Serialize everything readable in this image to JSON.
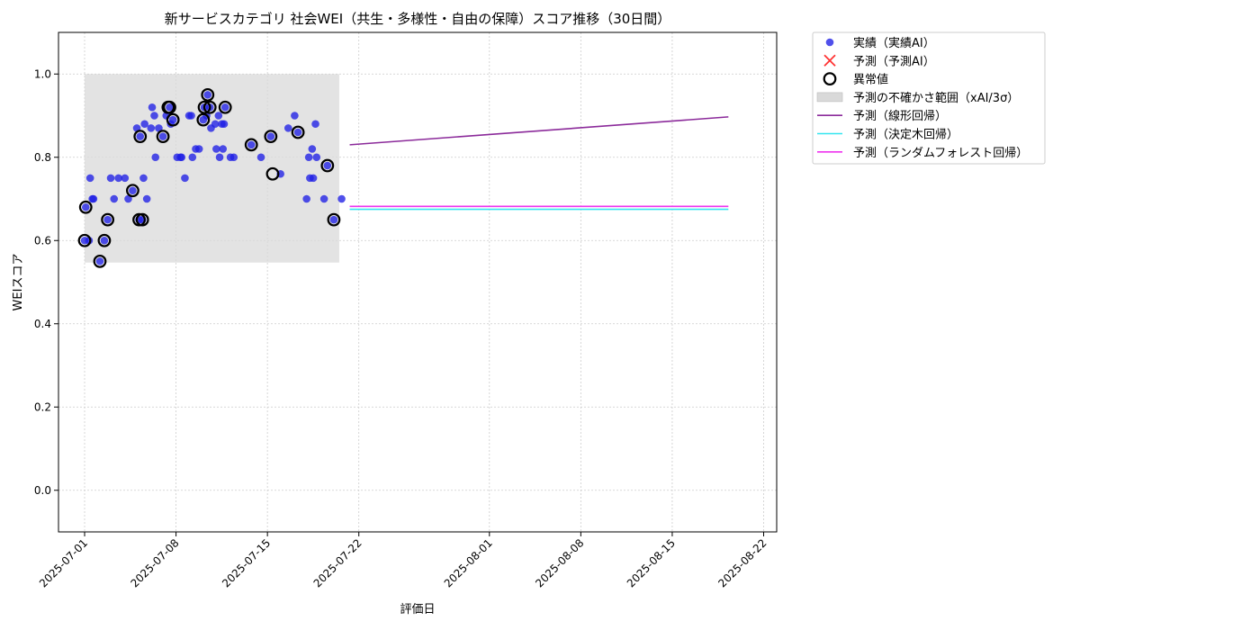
{
  "chart_data": {
    "type": "scatter",
    "title": "新サービスカテゴリ 社会WEI（共生・多様性・自由の保障）スコア推移（30日間）",
    "xlabel": "評価日",
    "ylabel": "WEIスコア",
    "ylim": [
      -0.1,
      1.1
    ],
    "xlim": [
      "2025-06-29",
      "2025-08-23"
    ],
    "x_ticks": [
      "2025-07-01",
      "2025-07-08",
      "2025-07-15",
      "2025-07-22",
      "2025-08-01",
      "2025-08-08",
      "2025-08-15",
      "2025-08-22"
    ],
    "y_ticks": [
      "0.0",
      "0.2",
      "0.4",
      "0.6",
      "0.8",
      "1.0"
    ],
    "grid": true,
    "legend_position": "outside-right-top",
    "colors": {
      "actual": "#1f1fe6",
      "predicted": "#ff3333",
      "anomaly": "#000000",
      "band": "#d9d9d9",
      "linear": "#8b2a9a",
      "tree": "#33e6f0",
      "forest": "#ee33ee"
    },
    "legend": [
      {
        "key": "actual",
        "label": "実績（実績AI）"
      },
      {
        "key": "predicted",
        "label": "予測（予測AI）"
      },
      {
        "key": "anomaly",
        "label": "異常値"
      },
      {
        "key": "band",
        "label": "予測の不確かさ範囲（xAI/3σ）"
      },
      {
        "key": "linear",
        "label": "予測（線形回帰）"
      },
      {
        "key": "tree",
        "label": "予測（決定木回帰）"
      },
      {
        "key": "forest",
        "label": "予測（ランダムフォレスト回帰）"
      }
    ],
    "uncertainty_band": {
      "x": [
        "2025-07-01",
        "2025-07-21"
      ],
      "y": [
        0.547,
        1.0
      ]
    },
    "series": [
      {
        "name": "実績（実績AI）",
        "points": [
          [
            "2025-07-01",
            0.6
          ],
          [
            "2025-07-01",
            0.7
          ],
          [
            "2025-07-01",
            0.6
          ],
          [
            "2025-07-01",
            0.68
          ],
          [
            "2025-07-01",
            0.7
          ],
          [
            "2025-07-01",
            0.75
          ],
          [
            "2025-07-02",
            0.55
          ],
          [
            "2025-07-02",
            0.65
          ],
          [
            "2025-07-02",
            0.6
          ],
          [
            "2025-07-03",
            0.7
          ],
          [
            "2025-07-03",
            0.75
          ],
          [
            "2025-07-03",
            0.75
          ],
          [
            "2025-07-04",
            0.7
          ],
          [
            "2025-07-04",
            0.75
          ],
          [
            "2025-07-04",
            0.72
          ],
          [
            "2025-07-05",
            0.65
          ],
          [
            "2025-07-05",
            0.65
          ],
          [
            "2025-07-05",
            0.7
          ],
          [
            "2025-07-05",
            0.75
          ],
          [
            "2025-07-05",
            0.85
          ],
          [
            "2025-07-05",
            0.87
          ],
          [
            "2025-07-05",
            0.88
          ],
          [
            "2025-07-06",
            0.9
          ],
          [
            "2025-07-06",
            0.87
          ],
          [
            "2025-07-06",
            0.87
          ],
          [
            "2025-07-06",
            0.8
          ],
          [
            "2025-07-06",
            0.92
          ],
          [
            "2025-07-07",
            0.89
          ],
          [
            "2025-07-07",
            0.92
          ],
          [
            "2025-07-07",
            0.9
          ],
          [
            "2025-07-07",
            0.85
          ],
          [
            "2025-07-07",
            0.88
          ],
          [
            "2025-07-08",
            0.8
          ],
          [
            "2025-07-08",
            0.8
          ],
          [
            "2025-07-08",
            0.75
          ],
          [
            "2025-07-08",
            0.8
          ],
          [
            "2025-07-09",
            0.9
          ],
          [
            "2025-07-09",
            0.82
          ],
          [
            "2025-07-09",
            0.82
          ],
          [
            "2025-07-09",
            0.8
          ],
          [
            "2025-07-09",
            0.9
          ],
          [
            "2025-07-10",
            0.92
          ],
          [
            "2025-07-10",
            0.9
          ],
          [
            "2025-07-10",
            0.89
          ],
          [
            "2025-07-10",
            0.87
          ],
          [
            "2025-07-10",
            0.95
          ],
          [
            "2025-07-10",
            0.92
          ],
          [
            "2025-07-11",
            0.92
          ],
          [
            "2025-07-11",
            0.88
          ],
          [
            "2025-07-11",
            0.9
          ],
          [
            "2025-07-11",
            0.88
          ],
          [
            "2025-07-11",
            0.82
          ],
          [
            "2025-07-11",
            0.8
          ],
          [
            "2025-07-11",
            0.82
          ],
          [
            "2025-07-11",
            0.88
          ],
          [
            "2025-07-12",
            0.8
          ],
          [
            "2025-07-12",
            0.8
          ],
          [
            "2025-07-13",
            0.83
          ],
          [
            "2025-07-14",
            0.8
          ],
          [
            "2025-07-15",
            0.85
          ],
          [
            "2025-07-16",
            0.76
          ],
          [
            "2025-07-16",
            0.87
          ],
          [
            "2025-07-17",
            0.86
          ],
          [
            "2025-07-17",
            0.9
          ],
          [
            "2025-07-18",
            0.88
          ],
          [
            "2025-07-18",
            0.82
          ],
          [
            "2025-07-18",
            0.8
          ],
          [
            "2025-07-18",
            0.8
          ],
          [
            "2025-07-18",
            0.75
          ],
          [
            "2025-07-18",
            0.75
          ],
          [
            "2025-07-18",
            0.7
          ],
          [
            "2025-07-19",
            0.78
          ],
          [
            "2025-07-19",
            0.7
          ],
          [
            "2025-07-20",
            0.65
          ],
          [
            "2025-07-20",
            0.7
          ]
        ]
      },
      {
        "name": "異常値",
        "points": [
          [
            "2025-07-01",
            0.6
          ],
          [
            "2025-07-01",
            0.68
          ],
          [
            "2025-07-02",
            0.55
          ],
          [
            "2025-07-02",
            0.65
          ],
          [
            "2025-07-02",
            0.6
          ],
          [
            "2025-07-04",
            0.72
          ],
          [
            "2025-07-05",
            0.65
          ],
          [
            "2025-07-05",
            0.65
          ],
          [
            "2025-07-05",
            0.85
          ],
          [
            "2025-07-07",
            0.92
          ],
          [
            "2025-07-07",
            0.89
          ],
          [
            "2025-07-07",
            0.92
          ],
          [
            "2025-07-07",
            0.85
          ],
          [
            "2025-07-10",
            0.92
          ],
          [
            "2025-07-10",
            0.89
          ],
          [
            "2025-07-10",
            0.95
          ],
          [
            "2025-07-10",
            0.92
          ],
          [
            "2025-07-11",
            0.92
          ],
          [
            "2025-07-13",
            0.83
          ],
          [
            "2025-07-15",
            0.85
          ],
          [
            "2025-07-15",
            0.76
          ],
          [
            "2025-07-17",
            0.86
          ],
          [
            "2025-07-19",
            0.78
          ],
          [
            "2025-07-20",
            0.65
          ]
        ]
      },
      {
        "name": "予測（線形回帰）",
        "points": [
          [
            "2025-07-21",
            0.83
          ],
          [
            "2025-08-19",
            0.897
          ]
        ]
      },
      {
        "name": "予測（決定木回帰）",
        "points": [
          [
            "2025-07-21",
            0.675
          ],
          [
            "2025-08-19",
            0.675
          ]
        ]
      },
      {
        "name": "予測（ランダムフォレスト回帰）",
        "points": [
          [
            "2025-07-21",
            0.682
          ],
          [
            "2025-08-19",
            0.682
          ]
        ]
      }
    ]
  }
}
